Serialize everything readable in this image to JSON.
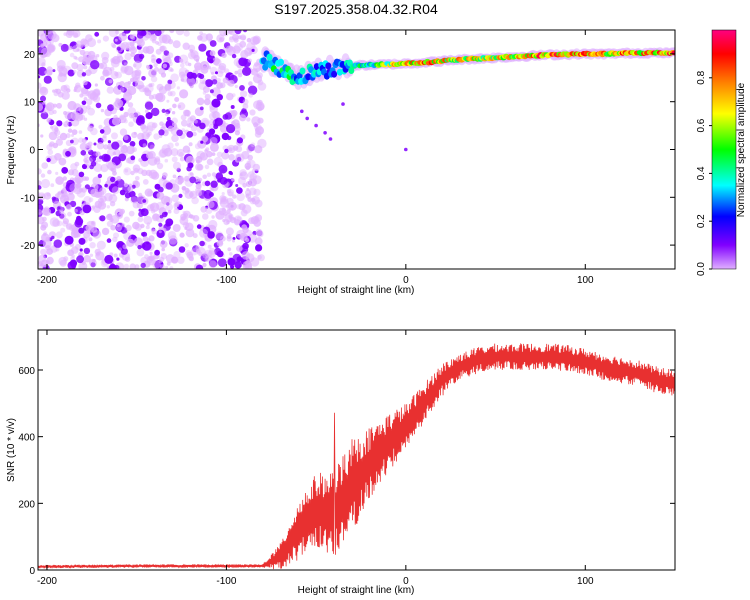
{
  "title": "S197.2025.358.04.32.R04",
  "colors": {
    "signal": "#e83030",
    "noise_light": "#d8b4f0",
    "noise_dark": "#6a1bd0",
    "frame": "#000000"
  },
  "chart_data": [
    {
      "type": "heatmap",
      "xlabel": "Height of straight line (km)",
      "ylabel": "Frequency (Hz)",
      "xlim": [
        -205,
        150
      ],
      "ylim": [
        -25,
        25
      ],
      "xticks": [
        -200,
        -100,
        0,
        100
      ],
      "yticks": [
        -20,
        -10,
        0,
        10,
        20
      ],
      "colorbar": {
        "label": "Normalized spectral amplitude",
        "range": [
          0.0,
          1.0
        ],
        "ticks": [
          0.0,
          0.2,
          0.4,
          0.6,
          0.8
        ],
        "colormap": [
          "#e0b0ff",
          "#8000ff",
          "#0000ff",
          "#00ffff",
          "#00ff00",
          "#ffff00",
          "#ff8000",
          "#ff0000",
          "#ff0080"
        ]
      },
      "ridge": {
        "x": [
          -80,
          -70,
          -60,
          -50,
          -40,
          -30,
          -20,
          -10,
          0,
          10,
          20,
          30,
          40,
          50,
          60,
          70,
          80,
          90,
          100,
          110,
          120,
          130,
          140,
          150
        ],
        "freq": [
          19,
          17,
          15,
          16.5,
          17,
          17.5,
          17.7,
          17.8,
          18,
          18.2,
          18.5,
          18.8,
          19,
          19.2,
          19.4,
          19.6,
          19.8,
          19.9,
          20,
          20,
          20.1,
          20.2,
          20.2,
          20.2
        ],
        "amplitude": [
          0.45,
          0.5,
          0.45,
          0.4,
          0.35,
          0.45,
          0.55,
          0.65,
          0.85,
          0.9,
          0.8,
          0.8,
          0.7,
          0.75,
          0.8,
          0.9,
          0.95,
          0.9,
          0.85,
          0.8,
          0.85,
          0.8,
          0.9,
          0.9
        ]
      },
      "noise_region": [
        -205,
        -80
      ]
    },
    {
      "type": "line",
      "xlabel": "Height of straight line (km)",
      "ylabel": "SNR (10 * v/v)",
      "xlim": [
        -205,
        150
      ],
      "ylim": [
        0,
        720
      ],
      "xticks": [
        -200,
        -100,
        0,
        100
      ],
      "yticks": [
        0,
        200,
        400,
        600
      ],
      "series": [
        {
          "name": "SNR",
          "x": [
            -205,
            -150,
            -100,
            -80,
            -70,
            -60,
            -50,
            -40,
            -30,
            -20,
            -10,
            0,
            10,
            20,
            30,
            40,
            50,
            60,
            70,
            80,
            90,
            100,
            110,
            120,
            130,
            140,
            150
          ],
          "y": [
            10,
            12,
            12,
            12,
            40,
            120,
            180,
            170,
            250,
            320,
            380,
            430,
            500,
            570,
            610,
            630,
            640,
            640,
            640,
            640,
            635,
            625,
            610,
            600,
            590,
            570,
            560
          ],
          "jitter": [
            5,
            5,
            5,
            5,
            40,
            90,
            110,
            130,
            150,
            110,
            90,
            70,
            60,
            50,
            40,
            40,
            40,
            40,
            40,
            40,
            40,
            40,
            40,
            40,
            40,
            40,
            40
          ]
        }
      ]
    }
  ]
}
